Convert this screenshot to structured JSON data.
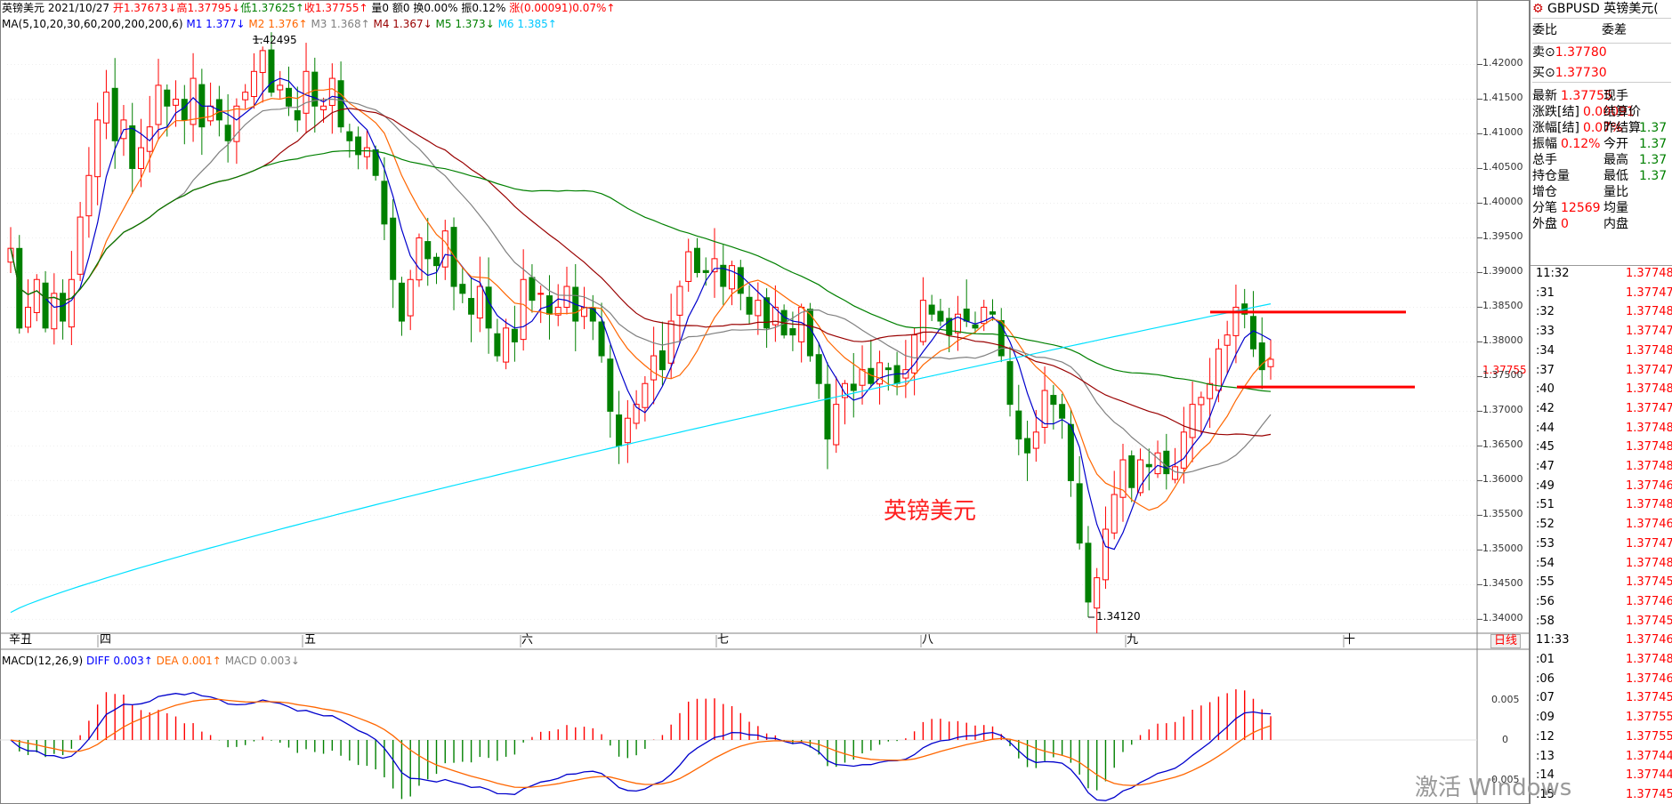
{
  "header": {
    "symbol": "英镑美元",
    "date": "2021/10/27",
    "open": "开1.37673↓",
    "high": "高1.37795↓",
    "low": "低1.37625↑",
    "close": "收1.37755↑",
    "volume": "量0",
    "amount": "额0",
    "turnover": "换0.00%",
    "amplitude": "振0.12%",
    "change": "涨(0.00091)0.07%↑"
  },
  "ma_line": {
    "label": "MA(5,10,20,30,60,200,200,200,6)",
    "m1": "M1 1.377↓",
    "m2": "M2 1.376↑",
    "m3": "M3 1.368↑",
    "m4": "M4 1.367↓",
    "m5": "M5 1.373↓",
    "m6": "M6 1.385↑"
  },
  "chart_data": {
    "type": "candlestick",
    "title": "英镑美元",
    "ylim": [
      1.338,
      1.4275
    ],
    "yticks": [
      "1.42000",
      "1.41500",
      "1.41000",
      "1.40500",
      "1.40000",
      "1.39500",
      "1.39000",
      "1.38500",
      "1.38000",
      "1.37500",
      "1.37000",
      "1.36500",
      "1.36000",
      "1.35500",
      "1.35000",
      "1.34500",
      "1.34000"
    ],
    "current_price": "1.37755",
    "max_label": "1.42495",
    "min_label": "1.34120",
    "month_labels": [
      "辛丑",
      "四",
      "五",
      "六",
      "七",
      "八",
      "九",
      "十"
    ],
    "dayline_button": "日线",
    "closes": [
      1.3935,
      1.382,
      1.385,
      1.389,
      1.382,
      1.387,
      1.383,
      1.389,
      1.398,
      1.404,
      1.412,
      1.416,
      1.409,
      1.412,
      1.405,
      1.408,
      1.411,
      1.417,
      1.414,
      1.415,
      1.412,
      1.418,
      1.411,
      1.414,
      1.412,
      1.409,
      1.414,
      1.416,
      1.419,
      1.422,
      1.416,
      1.417,
      1.414,
      1.412,
      1.419,
      1.414,
      1.414,
      1.418,
      1.411,
      1.409,
      1.407,
      1.408,
      1.404,
      1.397,
      1.389,
      1.383,
      1.389,
      1.395,
      1.392,
      1.391,
      1.396,
      1.388,
      1.387,
      1.384,
      1.388,
      1.382,
      1.378,
      1.382,
      1.38,
      1.389,
      1.386,
      1.387,
      1.384,
      1.385,
      1.388,
      1.383,
      1.385,
      1.383,
      1.378,
      1.37,
      1.365,
      1.369,
      1.371,
      1.374,
      1.378,
      1.376,
      1.383,
      1.388,
      1.393,
      1.39,
      1.39,
      1.392,
      1.388,
      1.391,
      1.387,
      1.384,
      1.386,
      1.382,
      1.385,
      1.381,
      1.381,
      1.385,
      1.378,
      1.374,
      1.366,
      1.371,
      1.374,
      1.373,
      1.376,
      1.374,
      1.377,
      1.376,
      1.374,
      1.376,
      1.381,
      1.386,
      1.384,
      1.383,
      1.381,
      1.384,
      1.383,
      1.382,
      1.385,
      1.384,
      1.378,
      1.371,
      1.366,
      1.364,
      1.367,
      1.373,
      1.371,
      1.369,
      1.36,
      1.351,
      1.3425,
      1.346,
      1.353,
      1.358,
      1.363,
      1.359,
      1.363,
      1.362,
      1.364,
      1.361,
      1.362,
      1.367,
      1.371,
      1.372,
      1.374,
      1.379,
      1.381,
      1.385,
      1.384,
      1.379,
      1.376,
      1.3775
    ],
    "ma6_range": [
      1.341,
      1.3855
    ],
    "support_level": 1.3735,
    "resistance_level": 1.3843
  },
  "macd": {
    "label": "MACD(12,26,9)",
    "diff": "DIFF 0.003↑",
    "dea": "DEA 0.001↑",
    "macd": "MACD 0.003↓",
    "yticks": [
      "0.005",
      "0",
      "-0.005"
    ]
  },
  "quote_panel": {
    "title": "GBPUSD 英镑美元(",
    "wb_label": "委比",
    "wc_label": "委差",
    "sell_label": "卖⊙",
    "sell_price": "1.37780",
    "buy_label": "买⊙",
    "buy_price": "1.37730",
    "rows": [
      {
        "l": "最新",
        "lv": "1.37755",
        "r": "现手",
        "rv": ""
      },
      {
        "l": "涨跌[结]",
        "lv": "0.00091",
        "r": "结算价",
        "rv": ""
      },
      {
        "l": "涨幅[结]",
        "lv": "0.07%",
        "r": "昨结算",
        "rv": "1.37"
      },
      {
        "l": "振幅",
        "lv": "0.12%",
        "r": "今开",
        "rv": "1.37"
      },
      {
        "l": "总手",
        "lv": "",
        "r": "最高",
        "rv": "1.37"
      },
      {
        "l": "持仓量",
        "lv": "",
        "r": "最低",
        "rv": "1.37"
      },
      {
        "l": "增仓",
        "lv": "",
        "r": "量比",
        "rv": ""
      },
      {
        "l": "分笔",
        "lv": "12569",
        "r": "均量",
        "rv": ""
      },
      {
        "l": "外盘",
        "lv": "0",
        "r": "内盘",
        "rv": ""
      }
    ],
    "ticks": [
      {
        "t": "11:32",
        "p": "1.37748"
      },
      {
        "t": ":31",
        "p": "1.37747"
      },
      {
        "t": ":32",
        "p": "1.37748"
      },
      {
        "t": ":33",
        "p": "1.37747"
      },
      {
        "t": ":34",
        "p": "1.37748"
      },
      {
        "t": ":37",
        "p": "1.37747"
      },
      {
        "t": ":40",
        "p": "1.37748"
      },
      {
        "t": ":42",
        "p": "1.37747"
      },
      {
        "t": ":44",
        "p": "1.37748"
      },
      {
        "t": ":45",
        "p": "1.37748"
      },
      {
        "t": ":47",
        "p": "1.37748"
      },
      {
        "t": ":49",
        "p": "1.37746"
      },
      {
        "t": ":51",
        "p": "1.37748"
      },
      {
        "t": ":52",
        "p": "1.37746"
      },
      {
        "t": ":53",
        "p": "1.37747"
      },
      {
        "t": ":54",
        "p": "1.37748"
      },
      {
        "t": ":55",
        "p": "1.37745"
      },
      {
        "t": ":56",
        "p": "1.37746"
      },
      {
        "t": ":58",
        "p": "1.37745"
      },
      {
        "t": "11:33",
        "p": "1.37746"
      },
      {
        "t": ":01",
        "p": "1.37748"
      },
      {
        "t": ":06",
        "p": "1.37746"
      },
      {
        "t": ":07",
        "p": "1.37745"
      },
      {
        "t": ":09",
        "p": "1.37755"
      },
      {
        "t": ":12",
        "p": "1.37755"
      },
      {
        "t": ":13",
        "p": "1.37744"
      },
      {
        "t": ":14",
        "p": "1.37744"
      },
      {
        "t": ":15",
        "p": "1.37745"
      }
    ]
  },
  "watermark": "激活 Windows",
  "colors": {
    "up": "#ff0000",
    "down": "#008000",
    "ma1": "#0000cc",
    "ma2": "#ff6600",
    "ma3": "#808080",
    "ma4": "#990000",
    "ma5": "#008000",
    "ma6": "#00e0ff",
    "grid": "#c0c0c0"
  }
}
